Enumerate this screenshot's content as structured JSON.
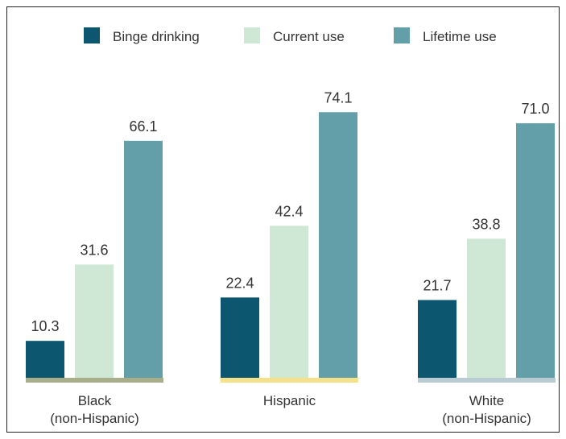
{
  "chart_data": {
    "type": "bar",
    "categories": [
      {
        "lines": [
          "Black",
          "(non-Hispanic)"
        ],
        "base_color": "#a8ae8a"
      },
      {
        "lines": [
          "Hispanic"
        ],
        "base_color": "#f3e28a"
      },
      {
        "lines": [
          "White",
          "(non-Hispanic)"
        ],
        "base_color": "#b9cbd3"
      }
    ],
    "series": [
      {
        "name": "Binge drinking",
        "color": "#0c5670",
        "values": [
          10.3,
          22.4,
          21.7
        ],
        "labels": [
          "10.3",
          "22.4",
          "21.7"
        ]
      },
      {
        "name": "Current use",
        "color": "#cfe8d5",
        "values": [
          31.6,
          42.4,
          38.8
        ],
        "labels": [
          "31.6",
          "42.4",
          "38.8"
        ]
      },
      {
        "name": "Lifetime use",
        "color": "#639fa9",
        "values": [
          66.1,
          74.1,
          71.0
        ],
        "labels": [
          "66.1",
          "74.1",
          "71.0"
        ]
      }
    ],
    "ylim": [
      0,
      80
    ],
    "legend_position": "top",
    "grid": false
  }
}
